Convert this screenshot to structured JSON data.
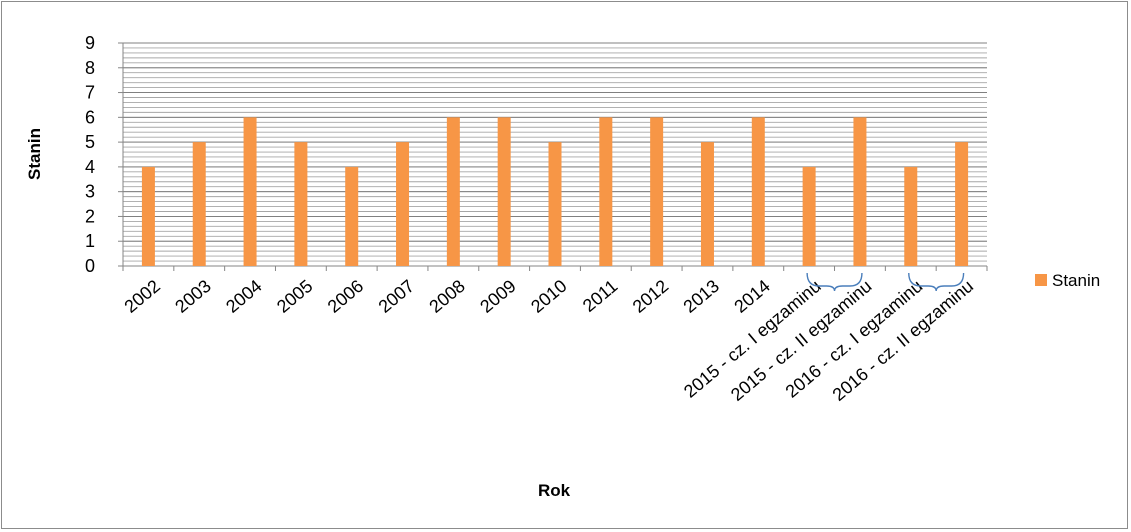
{
  "chart_data": {
    "type": "bar",
    "categories": [
      "2002",
      "2003",
      "2004",
      "2005",
      "2006",
      "2007",
      "2008",
      "2009",
      "2010",
      "2011",
      "2012",
      "2013",
      "2014",
      "2015 - cz. I egzaminu",
      "2015 - cz. II egzaminu",
      "2016 - cz. I egzaminu",
      "2016 - cz. II egzaminu"
    ],
    "series": [
      {
        "name": "Stanin",
        "values": [
          4,
          5,
          6,
          5,
          4,
          5,
          6,
          6,
          5,
          6,
          6,
          5,
          6,
          4,
          6,
          4,
          5
        ],
        "color": "#f79646"
      }
    ],
    "xlabel": "Rok",
    "ylabel": "Stanin",
    "ylim": [
      0,
      9
    ],
    "yticks": [
      0,
      1,
      2,
      3,
      4,
      5,
      6,
      7,
      8,
      9
    ],
    "minor_grid_step": 0.2,
    "grid": true,
    "legend_position": "right",
    "annotations": [
      "bracket grouping 2015 parts",
      "bracket grouping 2016 parts"
    ]
  }
}
